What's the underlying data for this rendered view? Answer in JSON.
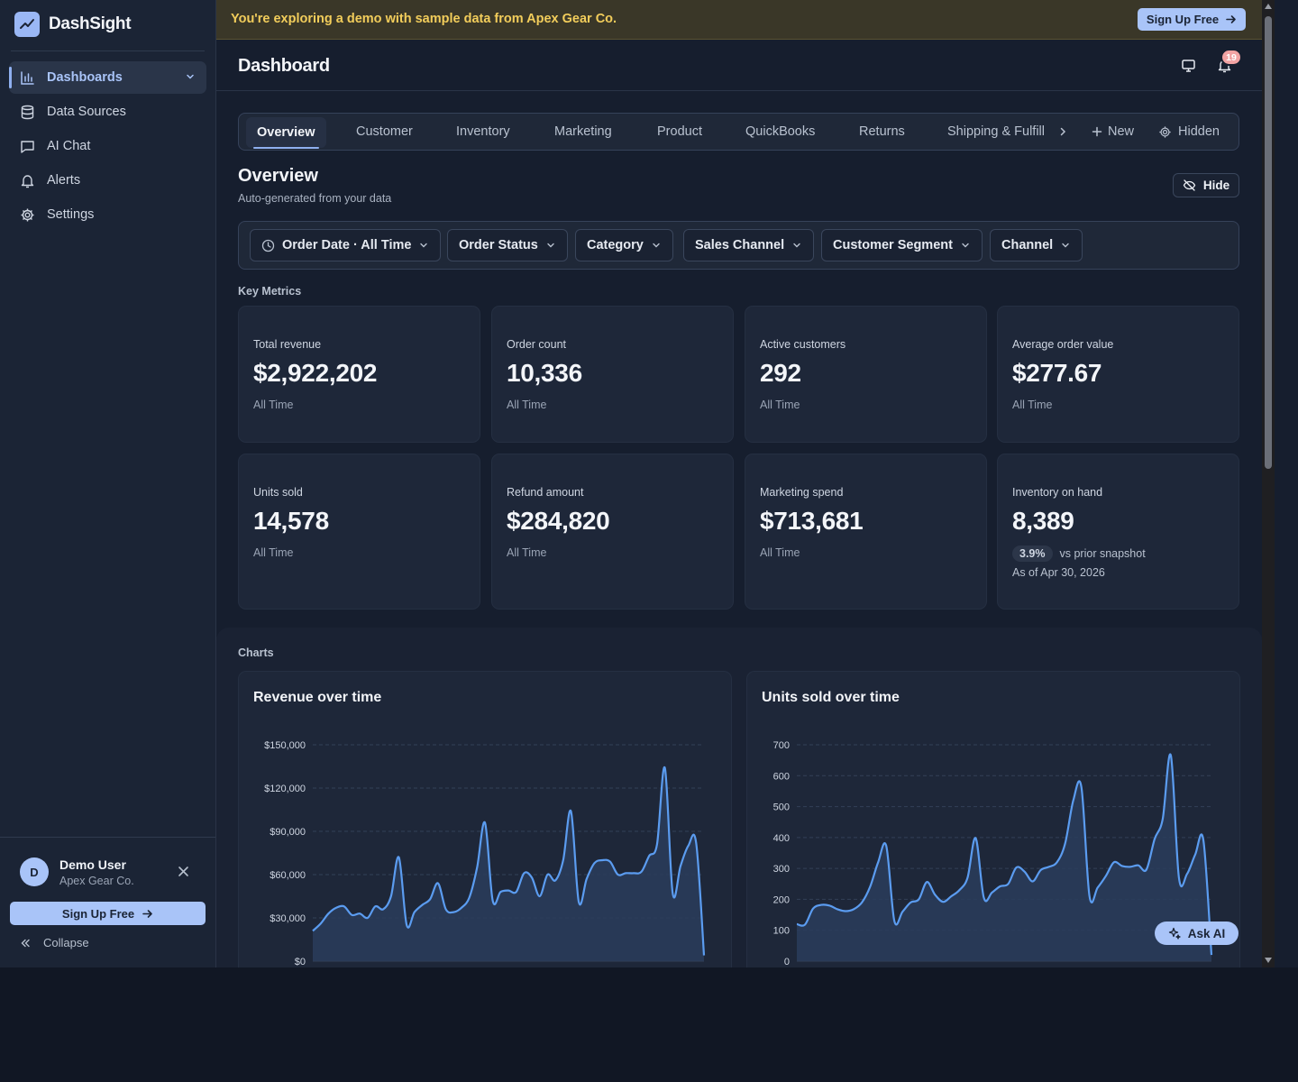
{
  "brand": {
    "name": "DashSight"
  },
  "sidebar": {
    "items": [
      {
        "label": "Dashboards",
        "icon": "bar-chart-icon",
        "active": true
      },
      {
        "label": "Data Sources",
        "icon": "database-icon"
      },
      {
        "label": "AI Chat",
        "icon": "chat-icon"
      },
      {
        "label": "Alerts",
        "icon": "bell-icon"
      },
      {
        "label": "Settings",
        "icon": "gear-icon"
      }
    ],
    "user": {
      "initial": "D",
      "name": "Demo User",
      "org": "Apex Gear Co."
    },
    "signup_label": "Sign Up Free",
    "collapse_label": "Collapse"
  },
  "banner": {
    "text": "You're exploring a demo with sample data from Apex Gear Co.",
    "button_label": "Sign Up Free"
  },
  "header": {
    "title": "Dashboard",
    "notification_count": "19"
  },
  "tabs": {
    "items": [
      "Overview",
      "Customer",
      "Inventory",
      "Marketing",
      "Product",
      "QuickBooks",
      "Returns",
      "Shipping & Fulfill"
    ],
    "active": "Overview",
    "new_label": "New",
    "hidden_label": "Hidden"
  },
  "overview": {
    "title": "Overview",
    "subtitle": "Auto-generated from your data",
    "hide_label": "Hide"
  },
  "filters": [
    "Order Date · All Time",
    "Order Status",
    "Category",
    "Sales Channel",
    "Customer Segment",
    "Channel"
  ],
  "key_metrics": {
    "label": "Key Metrics",
    "cards": [
      {
        "label": "Total revenue",
        "value": "$2,922,202",
        "period": "All Time"
      },
      {
        "label": "Order count",
        "value": "10,336",
        "period": "All Time"
      },
      {
        "label": "Active customers",
        "value": "292",
        "period": "All Time"
      },
      {
        "label": "Average order value",
        "value": "$277.67",
        "period": "All Time"
      },
      {
        "label": "Units sold",
        "value": "14,578",
        "period": "All Time"
      },
      {
        "label": "Refund amount",
        "value": "$284,820",
        "period": "All Time"
      },
      {
        "label": "Marketing spend",
        "value": "$713,681",
        "period": "All Time"
      },
      {
        "label": "Inventory on hand",
        "value": "8,389",
        "delta": "3.9%",
        "delta_text": "vs prior snapshot",
        "period": "As of Apr 30, 2026"
      }
    ]
  },
  "charts_label": "Charts",
  "ask_ai_label": "Ask AI",
  "colors": {
    "accent": "#a9c4f8",
    "line": "#5b9cf0",
    "banner_text": "#f2cd5b"
  },
  "chart_data": [
    {
      "type": "area",
      "title": "Revenue over time",
      "ylim": [
        0,
        150000
      ],
      "yticks": [
        0,
        30000,
        60000,
        90000,
        120000,
        150000
      ],
      "ytick_labels": [
        "$0",
        "$30,000",
        "$60,000",
        "$90,000",
        "$120,000",
        "$150,000"
      ],
      "series": [
        {
          "values": [
            21000,
            26000,
            33000,
            37000,
            38000,
            32000,
            33000,
            30000,
            38000,
            36000,
            45000,
            72000,
            25000,
            34000,
            39000,
            43000,
            54000,
            36000,
            34000,
            37000,
            44000,
            65000,
            96000,
            42000,
            48000,
            49000,
            48000,
            61000,
            58000,
            45000,
            60000,
            56000,
            70000,
            104000,
            41000,
            57000,
            68000,
            70000,
            69000,
            60000,
            61000,
            61000,
            62000,
            73000,
            81000,
            134000,
            47000,
            66000,
            80000,
            82000,
            4000
          ]
        }
      ]
    },
    {
      "type": "area",
      "title": "Units sold over time",
      "ylim": [
        0,
        700
      ],
      "yticks": [
        0,
        100,
        200,
        300,
        400,
        500,
        600,
        700
      ],
      "ytick_labels": [
        "0",
        "100",
        "200",
        "300",
        "400",
        "500",
        "600",
        "700"
      ],
      "series": [
        {
          "values": [
            120,
            118,
            170,
            182,
            180,
            168,
            162,
            168,
            190,
            240,
            320,
            373,
            130,
            160,
            190,
            200,
            256,
            215,
            192,
            210,
            230,
            270,
            398,
            205,
            222,
            242,
            250,
            303,
            290,
            258,
            295,
            305,
            320,
            380,
            520,
            563,
            210,
            238,
            275,
            320,
            308,
            305,
            310,
            296,
            395,
            460,
            666,
            270,
            282,
            345,
            392,
            20
          ]
        }
      ]
    }
  ]
}
